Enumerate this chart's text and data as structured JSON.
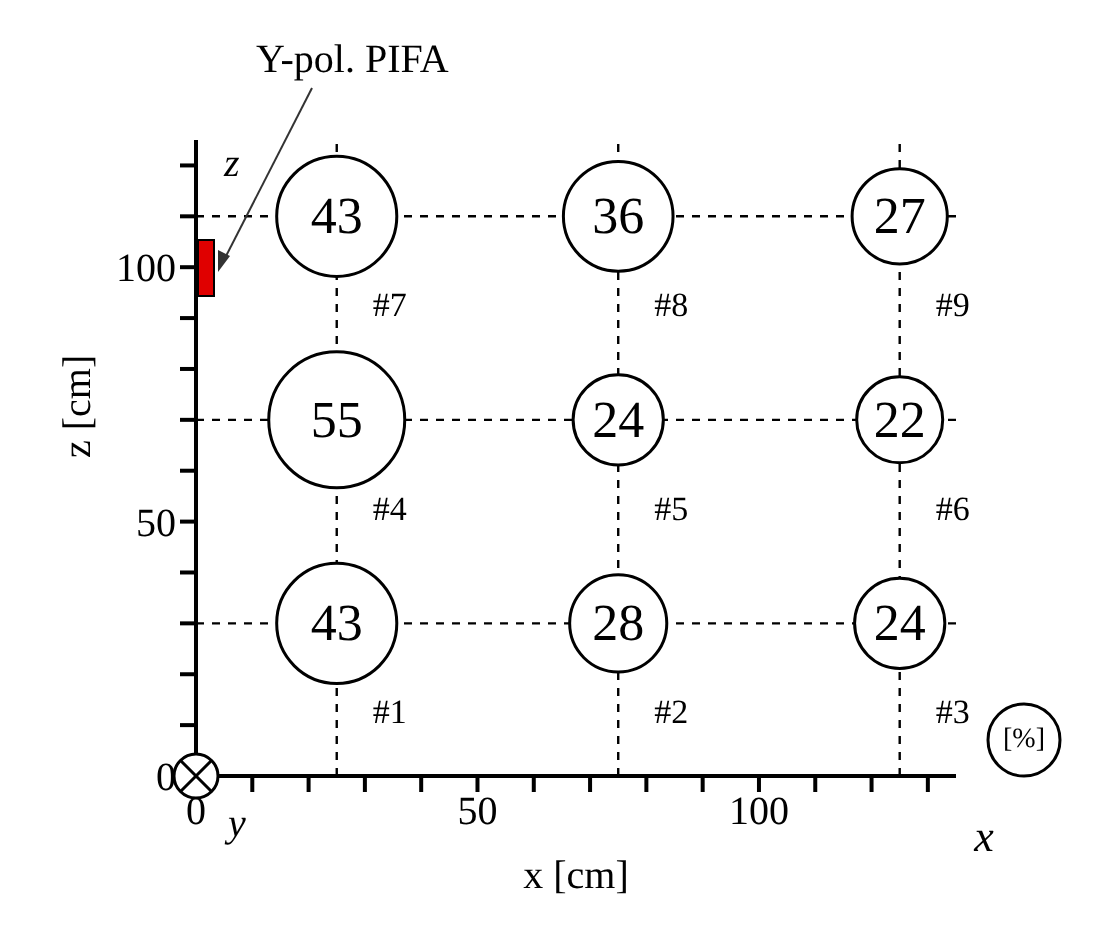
{
  "chart_data": {
    "type": "bubble",
    "xlabel": "x [cm]",
    "ylabel": "z [cm]",
    "x": [
      25,
      75,
      125,
      25,
      75,
      125,
      25,
      75,
      125
    ],
    "values": [
      30,
      30,
      30,
      70,
      70,
      70,
      110,
      110,
      110
    ],
    "sizes": [
      0.78,
      0.51,
      0.44,
      1,
      0.44,
      0.4,
      0.78,
      0.65,
      0.49
    ],
    "color": "#000000",
    "xlim": [
      0,
      135
    ],
    "ylim": [
      0,
      125
    ],
    "xticks": [
      0,
      {
        "value": 10,
        "label": null
      },
      {
        "value": 20,
        "label": null
      },
      {
        "value": 30,
        "label": null
      },
      {
        "value": 40,
        "label": null
      },
      50,
      {
        "value": 60,
        "label": null
      },
      {
        "value": 70,
        "label": null
      },
      {
        "value": 80,
        "label": null
      },
      {
        "value": 90,
        "label": null
      },
      100,
      {
        "value": 110,
        "label": null
      },
      {
        "value": 120,
        "label": null
      },
      {
        "value": 130,
        "label": null
      }
    ],
    "yticks": [
      0,
      {
        "value": 10,
        "label": null
      },
      {
        "value": 20,
        "label": null
      },
      {
        "value": 30,
        "label": null
      },
      {
        "value": 40,
        "label": null
      },
      50,
      {
        "value": 60,
        "label": null
      },
      {
        "value": 70,
        "label": null
      },
      {
        "value": 80,
        "label": null
      },
      {
        "value": 90,
        "label": null
      },
      100,
      {
        "value": 110,
        "label": null
      },
      {
        "value": 120,
        "label": null
      }
    ],
    "ref_lines": [
      {
        "axis": "x",
        "value": 25,
        "line_style": "dashed",
        "color": "#000000"
      },
      {
        "axis": "x",
        "value": 75,
        "line_style": "dashed",
        "color": "#000000"
      },
      {
        "axis": "x",
        "value": 125,
        "line_style": "dashed",
        "color": "#000000"
      },
      {
        "axis": "y",
        "value": 30,
        "line_style": "dashed",
        "color": "#000000"
      },
      {
        "axis": "y",
        "value": 70,
        "line_style": "dashed",
        "color": "#000000"
      },
      {
        "axis": "y",
        "value": 110,
        "line_style": "dashed",
        "color": "#000000"
      }
    ],
    "annotations": [
      "Y-pol. PIFA",
      {
        "text": "43",
        "x": 25,
        "y": 30
      },
      {
        "text": "28",
        "x": 75,
        "y": 30
      },
      {
        "text": "24",
        "x": 125,
        "y": 30
      },
      {
        "text": "55",
        "x": 25,
        "y": 70
      },
      {
        "text": "24",
        "x": 75,
        "y": 70
      },
      {
        "text": "22",
        "x": 125,
        "y": 70
      },
      {
        "text": "43",
        "x": 25,
        "y": 110
      },
      {
        "text": "36",
        "x": 75,
        "y": 110
      },
      {
        "text": "27",
        "x": 125,
        "y": 110
      },
      {
        "text": "#1",
        "x": 25,
        "y": 30
      },
      {
        "text": "#2",
        "x": 75,
        "y": 30
      },
      {
        "text": "#3",
        "x": 125,
        "y": 30
      },
      {
        "text": "#4",
        "x": 25,
        "y": 70
      },
      {
        "text": "#5",
        "x": 75,
        "y": 70
      },
      {
        "text": "#6",
        "x": 125,
        "y": 70
      },
      {
        "text": "#7",
        "x": 25,
        "y": 110
      },
      {
        "text": "#8",
        "x": 75,
        "y": 110
      },
      {
        "text": "#9",
        "x": 125,
        "y": 110
      },
      "z",
      "y",
      "x",
      "[%]"
    ],
    "grid": false,
    "legend": false
  }
}
